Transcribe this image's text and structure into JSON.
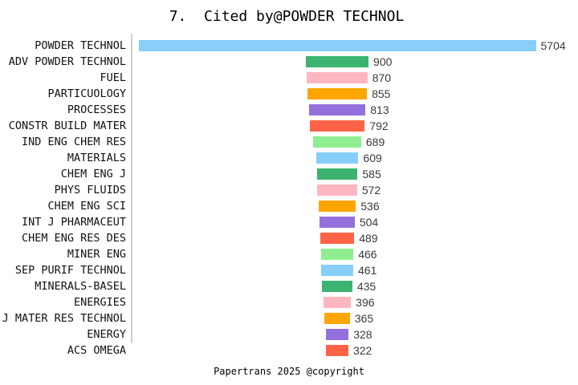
{
  "title": "7.  Cited by@POWDER TECHNOL",
  "footer": "Papertrans 2025 @copyright",
  "chart_data": {
    "type": "bar",
    "orientation": "horizontal",
    "title": "7.  Cited by@POWDER TECHNOL",
    "categories": [
      "POWDER TECHNOL",
      "ADV POWDER TECHNOL",
      "FUEL",
      "PARTICUOLOGY",
      "PROCESSES",
      "CONSTR BUILD MATER",
      "IND ENG CHEM RES",
      "MATERIALS",
      "CHEM ENG J",
      "PHYS FLUIDS",
      "CHEM ENG SCI",
      "INT J PHARMACEUT",
      "CHEM ENG RES DES",
      "MINER ENG",
      "SEP PURIF TECHNOL",
      "MINERALS-BASEL",
      "ENERGIES",
      "J MATER RES TECHNOL",
      "ENERGY",
      "ACS OMEGA"
    ],
    "values": [
      5704,
      900,
      870,
      855,
      813,
      792,
      689,
      609,
      585,
      572,
      536,
      504,
      489,
      466,
      461,
      435,
      396,
      365,
      328,
      322
    ],
    "palette": [
      "#87CEFA",
      "#3CB371",
      "#FFB6C1",
      "#FFA500",
      "#9370DB",
      "#FF6347",
      "#90EE90"
    ],
    "bar_alignment": "center",
    "value_labels_shown": true,
    "axis_line_color": "#cfcfcf",
    "value_label_color": "#3a3a3a",
    "category_label_color": "#111111",
    "grid": false,
    "legend": false,
    "xlabel": "",
    "ylabel": ""
  }
}
